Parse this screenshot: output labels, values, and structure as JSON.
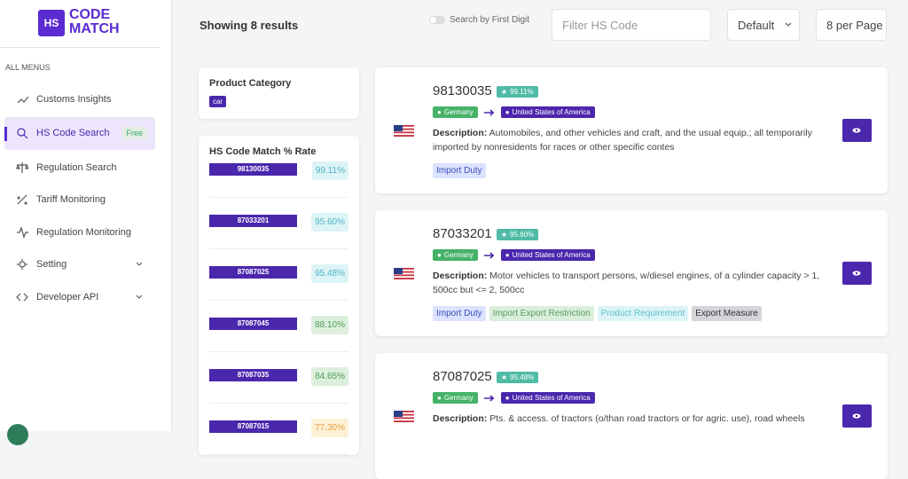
{
  "sidebar": {
    "logo": {
      "mark": "HS",
      "line1": "CODE",
      "line2": "MATCH"
    },
    "section": "ALL MENUS",
    "menu": [
      {
        "label": "Customs Insights"
      },
      {
        "label": "HS Code Search",
        "badge": "Free"
      },
      {
        "label": "Regulation Search"
      },
      {
        "label": "Tariff Monitoring"
      },
      {
        "label": "Regulation Monitoring"
      },
      {
        "label": "Setting"
      },
      {
        "label": "Developer API"
      }
    ]
  },
  "toolbar": {
    "results": "Showing 8 results",
    "toggle": "Search by First Digit",
    "filter_placeholder": "Filter HS Code",
    "sort": "Default",
    "per_page": "8 per Page"
  },
  "category_panel": {
    "title": "Product Category",
    "tags": [
      "car"
    ]
  },
  "match_panel": {
    "title": "HS Code Match % Rate",
    "rows": [
      {
        "code": "98130035",
        "rate": "99.11%"
      },
      {
        "code": "87033201",
        "rate": "95.60%"
      },
      {
        "code": "87087025",
        "rate": "95.48%"
      },
      {
        "code": "87087045",
        "rate": "88.10%"
      },
      {
        "code": "87087035",
        "rate": "84.65%"
      },
      {
        "code": "87087015",
        "rate": "77.30%"
      }
    ]
  },
  "results": [
    {
      "code": "98130035",
      "rate": "99.11%",
      "from": "Germany",
      "to": "United States of America",
      "description_label": "Description:",
      "description": "Automobiles, and other vehicles and craft, and the usual equip.; all temporarily imported by nonresidents for races or other specific contes",
      "tags": [
        "Import Duty"
      ]
    },
    {
      "code": "87033201",
      "rate": "95.60%",
      "from": "Germany",
      "to": "United States of America",
      "description_label": "Description:",
      "description": "Motor vehicles to transport persons, w/diesel engines, of a cylinder capacity > 1, 500cc but <= 2, 500cc",
      "tags": [
        "Import Duty",
        "Import Export Restriction",
        "Product Requirement",
        "Export Measure"
      ]
    },
    {
      "code": "87087025",
      "rate": "95.48%",
      "from": "Germany",
      "to": "United States of America",
      "description_label": "Description:",
      "description": "Pts. & access. of tractors (o/than road tractors or for agric. use), road wheels",
      "tags": []
    }
  ]
}
